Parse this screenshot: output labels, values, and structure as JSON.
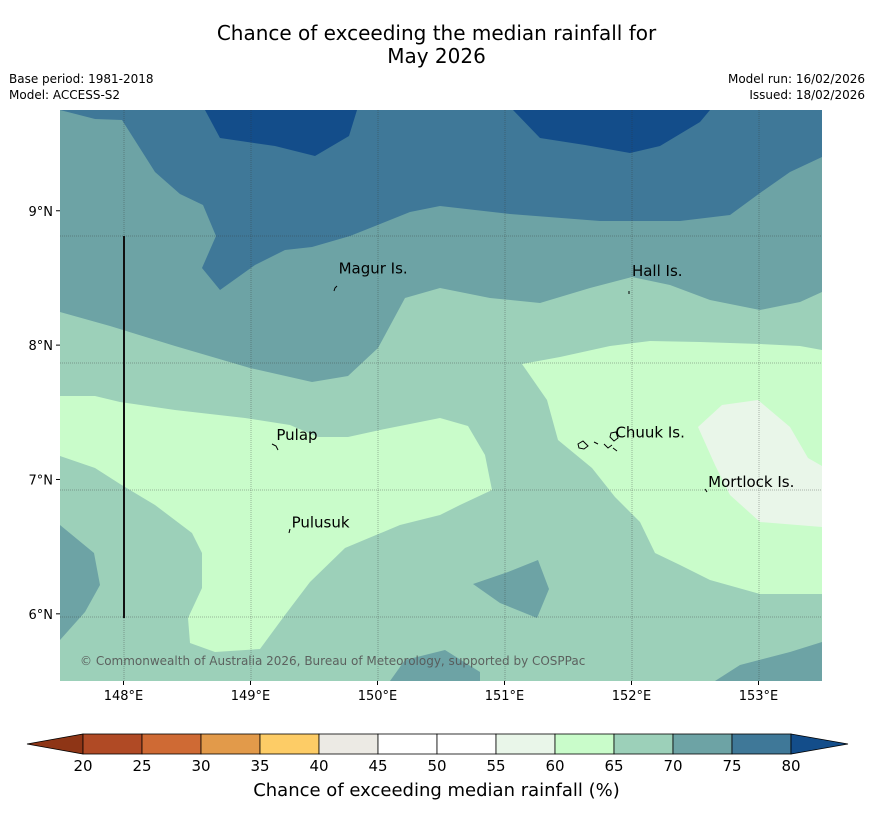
{
  "title_line1": "Chance of exceeding the median rainfall for",
  "title_line2": "May 2026",
  "meta_left": {
    "base_period": "Base period: 1981-2018",
    "model": "Model: ACCESS-S2"
  },
  "meta_right": {
    "model_run": "Model run: 16/02/2026",
    "issued": "Issued: 18/02/2026"
  },
  "map": {
    "lon_range": [
      147.5,
      153.5
    ],
    "lat_range": [
      5.5,
      9.75
    ],
    "lon_ticks": [
      "148°E",
      "149°E",
      "150°E",
      "151°E",
      "152°E",
      "153°E"
    ],
    "lat_ticks": [
      "9°N",
      "8°N",
      "7°N",
      "6°N"
    ],
    "places": [
      {
        "name": "Magur Is.",
        "lon": 149.67,
        "lat": 8.57
      },
      {
        "name": "Hall Is.",
        "lon": 151.98,
        "lat": 8.55
      },
      {
        "name": "Pulap",
        "lon": 149.18,
        "lat": 7.33
      },
      {
        "name": "Chuuk Is.",
        "lon": 151.85,
        "lat": 7.35
      },
      {
        "name": "Mortlock Is.",
        "lon": 152.58,
        "lat": 6.98
      },
      {
        "name": "Pulusuk",
        "lon": 149.3,
        "lat": 6.68
      }
    ],
    "copyright": "© Commonwealth of Australia 2026, Bureau of Meteorology, supported by COSPPac"
  },
  "colorbar": {
    "ticks": [
      "20",
      "25",
      "30",
      "35",
      "40",
      "45",
      "50",
      "55",
      "60",
      "65",
      "70",
      "75",
      "80"
    ],
    "colors": [
      "#b04a25",
      "#cf6a34",
      "#e29a4a",
      "#fdcc66",
      "#eceae4",
      "#ffffff",
      "#ffffff",
      "#e9f6e9",
      "#c9fcca",
      "#9cd0b9",
      "#6da3a5",
      "#3f7898",
      "#134d8a"
    ],
    "label": "Chance of exceeding median rainfall (%)"
  }
}
